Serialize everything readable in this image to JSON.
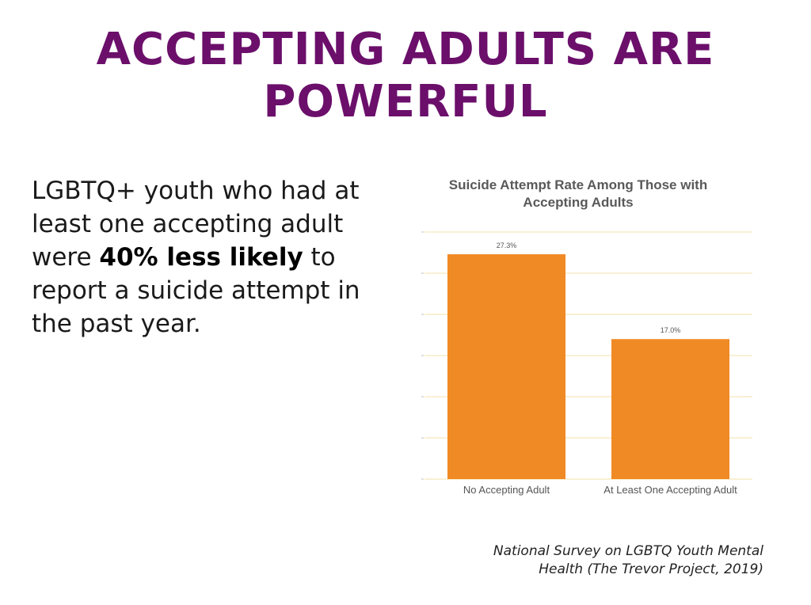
{
  "slide": {
    "title_line1": "ACCEPTING ADULTS ARE",
    "title_line2": "POWERFUL",
    "body_pre": "LGBTQ+ youth who had at least one accepting adult were ",
    "body_bold": "40% less likely",
    "body_post": " to report a suicide attempt in the past year.",
    "source_line1": "National Survey on LGBTQ Youth Mental",
    "source_line2": "Health (The Trevor Project, 2019)"
  },
  "colors": {
    "title": "#6b0f6b",
    "bar": "#f08a24",
    "grid": "#f3e2a8"
  },
  "chart_data": {
    "type": "bar",
    "title_line1": "Suicide Attempt Rate Among Those with",
    "title_line2": "Accepting Adults",
    "categories": [
      "No Accepting Adult",
      "At Least One Accepting Adult"
    ],
    "values": [
      27.3,
      17.0
    ],
    "value_labels": [
      "27.3%",
      "17.0%"
    ],
    "xlabel": "",
    "ylabel": "",
    "ylim": [
      0,
      30
    ],
    "grid": true,
    "legend": "none"
  }
}
